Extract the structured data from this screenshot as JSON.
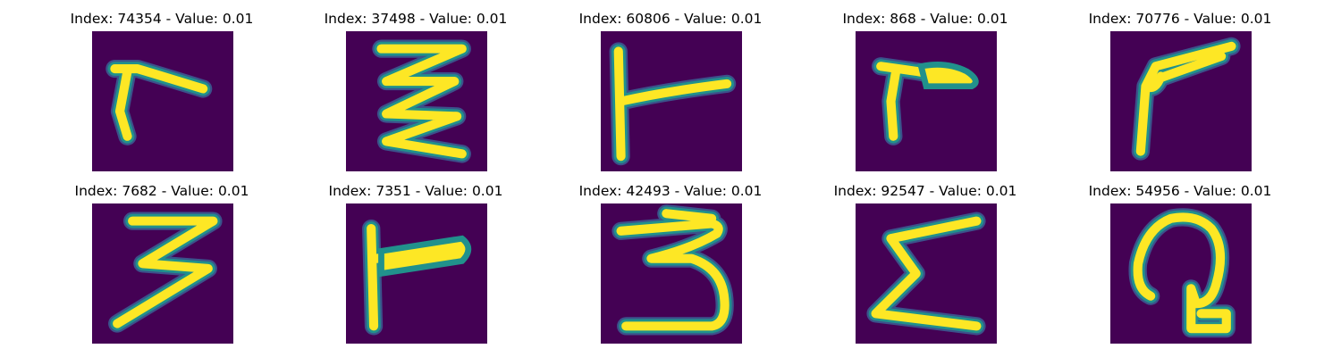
{
  "colors": {
    "background": "#440154",
    "stroke_core": "#fde725",
    "stroke_edge": "#21918c",
    "stroke_outer": "#3b528b"
  },
  "panels": [
    {
      "title": "Index: 74354 - Value: 0.01",
      "glyph": "r-shape"
    },
    {
      "title": "Index: 37498 - Value: 0.01",
      "glyph": "zigzag-shape"
    },
    {
      "title": "Index: 60806 - Value: 0.01",
      "glyph": "t-shape"
    },
    {
      "title": "Index: 868 - Value: 0.01",
      "glyph": "r-shape"
    },
    {
      "title": "Index: 70776 - Value: 0.01",
      "glyph": "angle-shape"
    },
    {
      "title": "Index: 7682 - Value: 0.01",
      "glyph": "three-shape"
    },
    {
      "title": "Index: 7351 - Value: 0.01",
      "glyph": "t-shape"
    },
    {
      "title": "Index: 42493 - Value: 0.01",
      "glyph": "three-shape"
    },
    {
      "title": "Index: 92547 - Value: 0.01",
      "glyph": "sigma-shape"
    },
    {
      "title": "Index: 54956 - Value: 0.01",
      "glyph": "loop-shape"
    }
  ]
}
